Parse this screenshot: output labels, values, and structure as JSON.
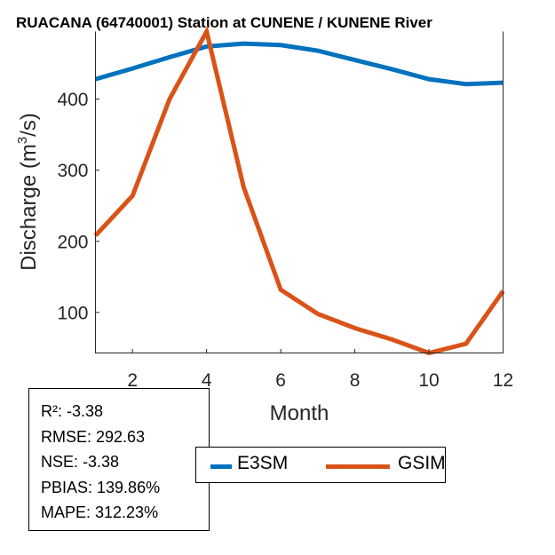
{
  "chart_data": {
    "type": "line",
    "title": "RUACANA (64740001)  Station at  CUNENE / KUNENE  River",
    "xlabel": "Month",
    "ylabel": "Discharge (m",
    "ylabel_sup": "3",
    "ylabel_tail": "/s)",
    "xlim": [
      1,
      12
    ],
    "ylim": [
      43,
      495
    ],
    "xticks": [
      2,
      4,
      6,
      8,
      10,
      12
    ],
    "yticks": [
      100,
      200,
      300,
      400
    ],
    "grid": false,
    "legend_placement": "bottom-center",
    "x": [
      1,
      2,
      3,
      4,
      5,
      6,
      7,
      8,
      9,
      10,
      11,
      12
    ],
    "series": [
      {
        "name": "E3SM",
        "color": "#0072BD",
        "values": [
          428,
          443,
          459,
          474,
          478,
          476,
          468,
          455,
          442,
          428,
          421,
          423
        ]
      },
      {
        "name": "GSIM",
        "color": "#D95319",
        "values": [
          208,
          264,
          400,
          495,
          276,
          132,
          98,
          78,
          62,
          43,
          56,
          130
        ]
      }
    ]
  },
  "stats": {
    "r2": "R²: -3.38",
    "rmse": "RMSE: 292.63",
    "nse": "NSE: -3.38",
    "pbias": "PBIAS: 139.86%",
    "mape": "MAPE: 312.23%"
  }
}
